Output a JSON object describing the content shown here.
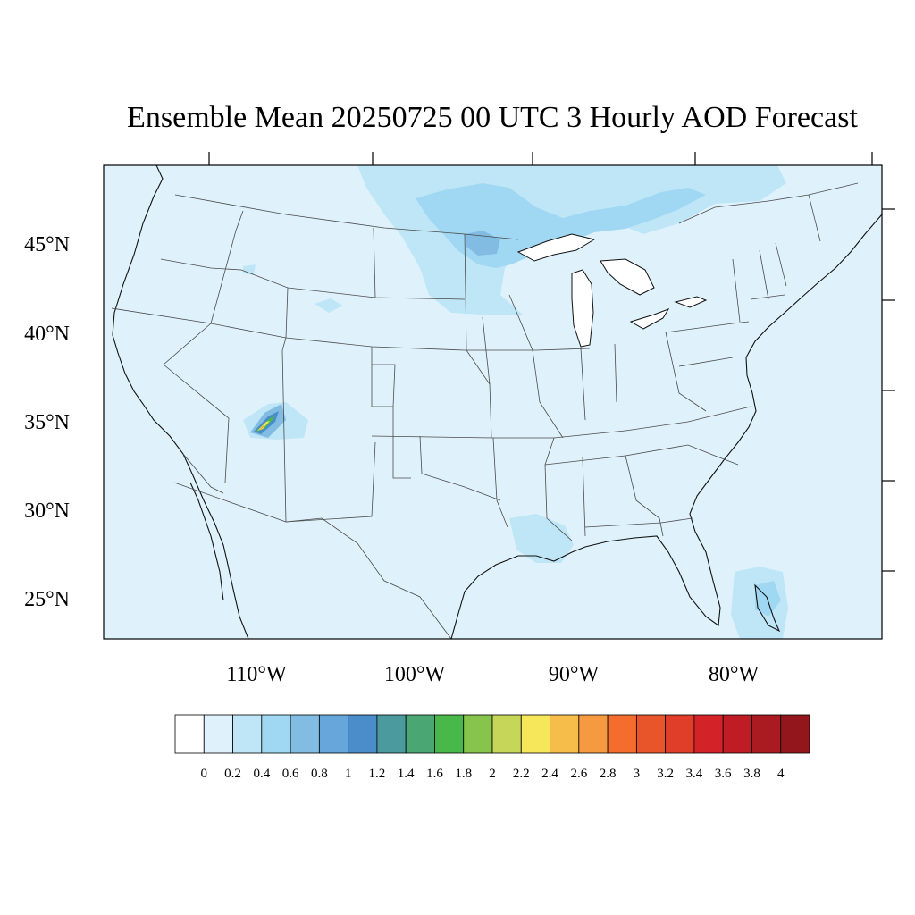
{
  "title": "Ensemble Mean 20250725 00 UTC 3 Hourly AOD Forecast",
  "map": {
    "latitude_labels": [
      "45°N",
      "40°N",
      "35°N",
      "30°N",
      "25°N"
    ],
    "longitude_labels": [
      "110°W",
      "100°W",
      "90°W",
      "80°W"
    ],
    "background_level_color": "#dff2fb"
  },
  "colorbar": {
    "colors": [
      "#ffffff",
      "#dff2fb",
      "#bfe6f7",
      "#a0d8f3",
      "#82bce3",
      "#66a6da",
      "#4a8dca",
      "#4a9a9e",
      "#4aa774",
      "#49b84a",
      "#86c44b",
      "#c5d658",
      "#f6e65a",
      "#f7bd4b",
      "#f59a40",
      "#f46d2d",
      "#e9552a",
      "#e03e28",
      "#d42229",
      "#bf1c25",
      "#aa1a21",
      "#92161c"
    ],
    "tick_labels": [
      "0",
      "0.2",
      "0.4",
      "0.6",
      "0.8",
      "1",
      "1.2",
      "1.4",
      "1.6",
      "1.8",
      "2",
      "2.2",
      "2.4",
      "2.6",
      "2.8",
      "3",
      "3.2",
      "3.4",
      "3.6",
      "3.8",
      "4"
    ]
  }
}
